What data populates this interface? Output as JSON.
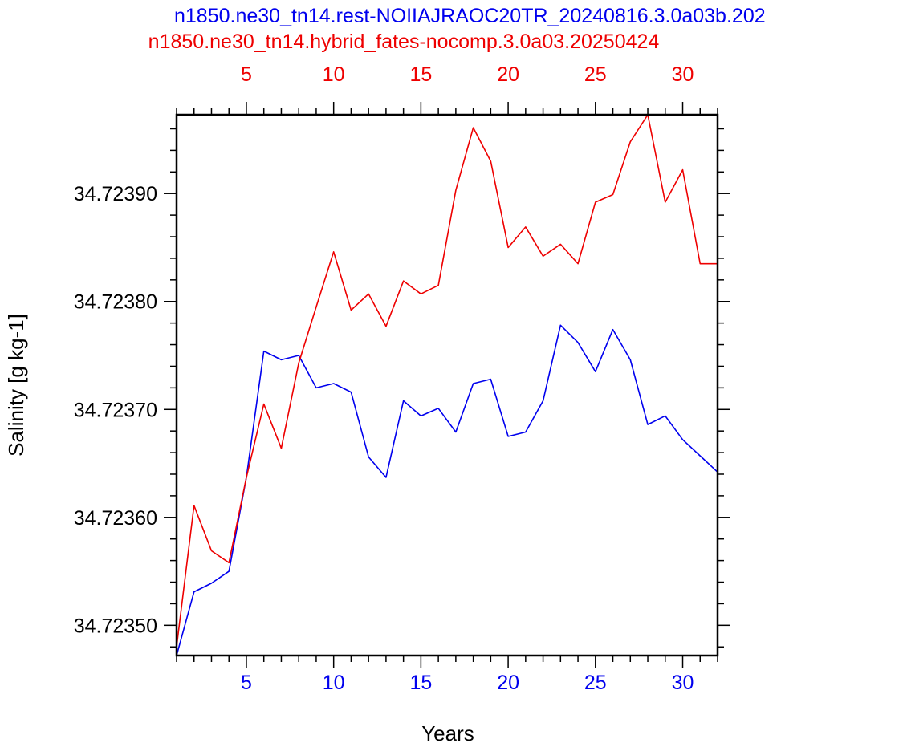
{
  "chart_data": {
    "type": "line",
    "xlabel": "Years",
    "ylabel": "Salinity [g kg-1]",
    "xlim": [
      1,
      32
    ],
    "ylim": [
      34.723472,
      34.723973
    ],
    "x_ticks": [
      5,
      10,
      15,
      20,
      25,
      30
    ],
    "y_ticks": [
      34.7235,
      34.7236,
      34.7237,
      34.7238,
      34.7239
    ],
    "y_tick_labels": [
      "34.72350",
      "34.72360",
      "34.72370",
      "34.72380",
      "34.72390"
    ],
    "grid": false,
    "legend": "none",
    "series": [
      {
        "name": "n1850.ne30_tn14.rest-NOIIAJRAOC20TR_20240816.3.0a03b.202",
        "color": "#0000ee",
        "axis": "bottom",
        "x": [
          1,
          2,
          3,
          4,
          5,
          6,
          7,
          8,
          9,
          10,
          11,
          12,
          13,
          14,
          15,
          16,
          17,
          18,
          19,
          20,
          21,
          22,
          23,
          24,
          25,
          26,
          27,
          28,
          29,
          30,
          31,
          32
        ],
        "values": [
          34.723472,
          34.723531,
          34.723539,
          34.72355,
          34.723637,
          34.723754,
          34.723746,
          34.72375,
          34.72372,
          34.723724,
          34.723716,
          34.723656,
          34.723637,
          34.723708,
          34.723694,
          34.723701,
          34.723679,
          34.723724,
          34.723728,
          34.723675,
          34.723679,
          34.723708,
          34.723778,
          34.723762,
          34.723735,
          34.723774,
          34.723746,
          34.723686,
          34.723694,
          34.723672,
          34.723657,
          34.723642
        ]
      },
      {
        "name": "n1850.ne30_tn14.hybrid_fates-nocomp.3.0a03.20250424",
        "color": "#ee0000",
        "axis": "top",
        "x": [
          1,
          2,
          3,
          4,
          5,
          6,
          7,
          8,
          9,
          10,
          11,
          12,
          13,
          14,
          15,
          16,
          17,
          18,
          19,
          20,
          21,
          22,
          23,
          24,
          25,
          26,
          27,
          28,
          29,
          30,
          31,
          32
        ],
        "values": [
          34.72348,
          34.723611,
          34.723569,
          34.723558,
          34.723637,
          34.723705,
          34.723664,
          34.723743,
          34.723795,
          34.723846,
          34.723792,
          34.723807,
          34.723777,
          34.723819,
          34.723807,
          34.723815,
          34.723903,
          34.723961,
          34.72393,
          34.72385,
          34.723869,
          34.723842,
          34.723853,
          34.723835,
          34.723892,
          34.723899,
          34.723948,
          34.723973,
          34.723892,
          34.723922,
          34.723835,
          34.723835
        ]
      }
    ]
  }
}
